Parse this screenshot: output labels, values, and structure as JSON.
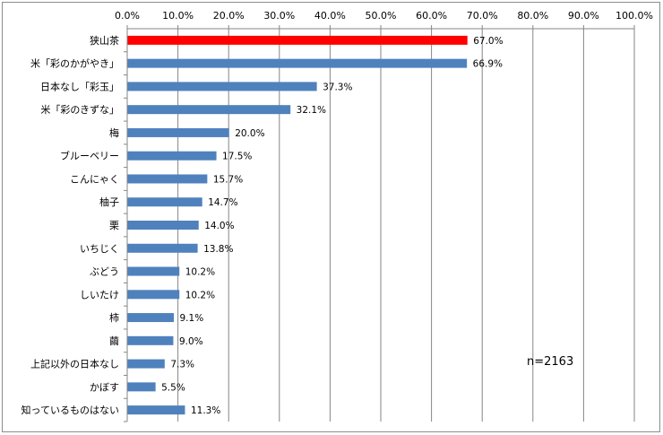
{
  "chart_data": {
    "type": "bar",
    "orientation": "horizontal",
    "categories": [
      "狭山茶",
      "米「彩のかがやき」",
      "日本なし「彩玉」",
      "米「彩のきずな」",
      "梅",
      "ブルーベリー",
      "こんにゃく",
      "柚子",
      "栗",
      "いちじく",
      "ぶどう",
      "しいたけ",
      "柿",
      "繭",
      "上記以外の日本なし",
      "かぼす",
      "知っているものはない"
    ],
    "values": [
      67.0,
      66.9,
      37.3,
      32.1,
      20.0,
      17.5,
      15.7,
      14.7,
      14.0,
      13.8,
      10.2,
      10.2,
      9.1,
      9.0,
      7.3,
      5.5,
      11.3
    ],
    "value_labels": [
      "67.0%",
      "66.9%",
      "37.3%",
      "32.1%",
      "20.0%",
      "17.5%",
      "15.7%",
      "14.7%",
      "14.0%",
      "13.8%",
      "10.2%",
      "10.2%",
      "9.1%",
      "9.0%",
      "7.3%",
      "5.5%",
      "11.3%"
    ],
    "x_ticks": [
      "0.0%",
      "10.0%",
      "20.0%",
      "30.0%",
      "40.0%",
      "50.0%",
      "60.0%",
      "70.0%",
      "80.0%",
      "90.0%",
      "100.0%"
    ],
    "xlim": [
      0,
      100
    ],
    "x_axis_position": "top",
    "grid": true,
    "highlight_index": 0,
    "colors": {
      "highlight": "#ff0000",
      "bar": "#4f81bd",
      "grid": "#868686"
    },
    "annotation": "n=2163"
  }
}
